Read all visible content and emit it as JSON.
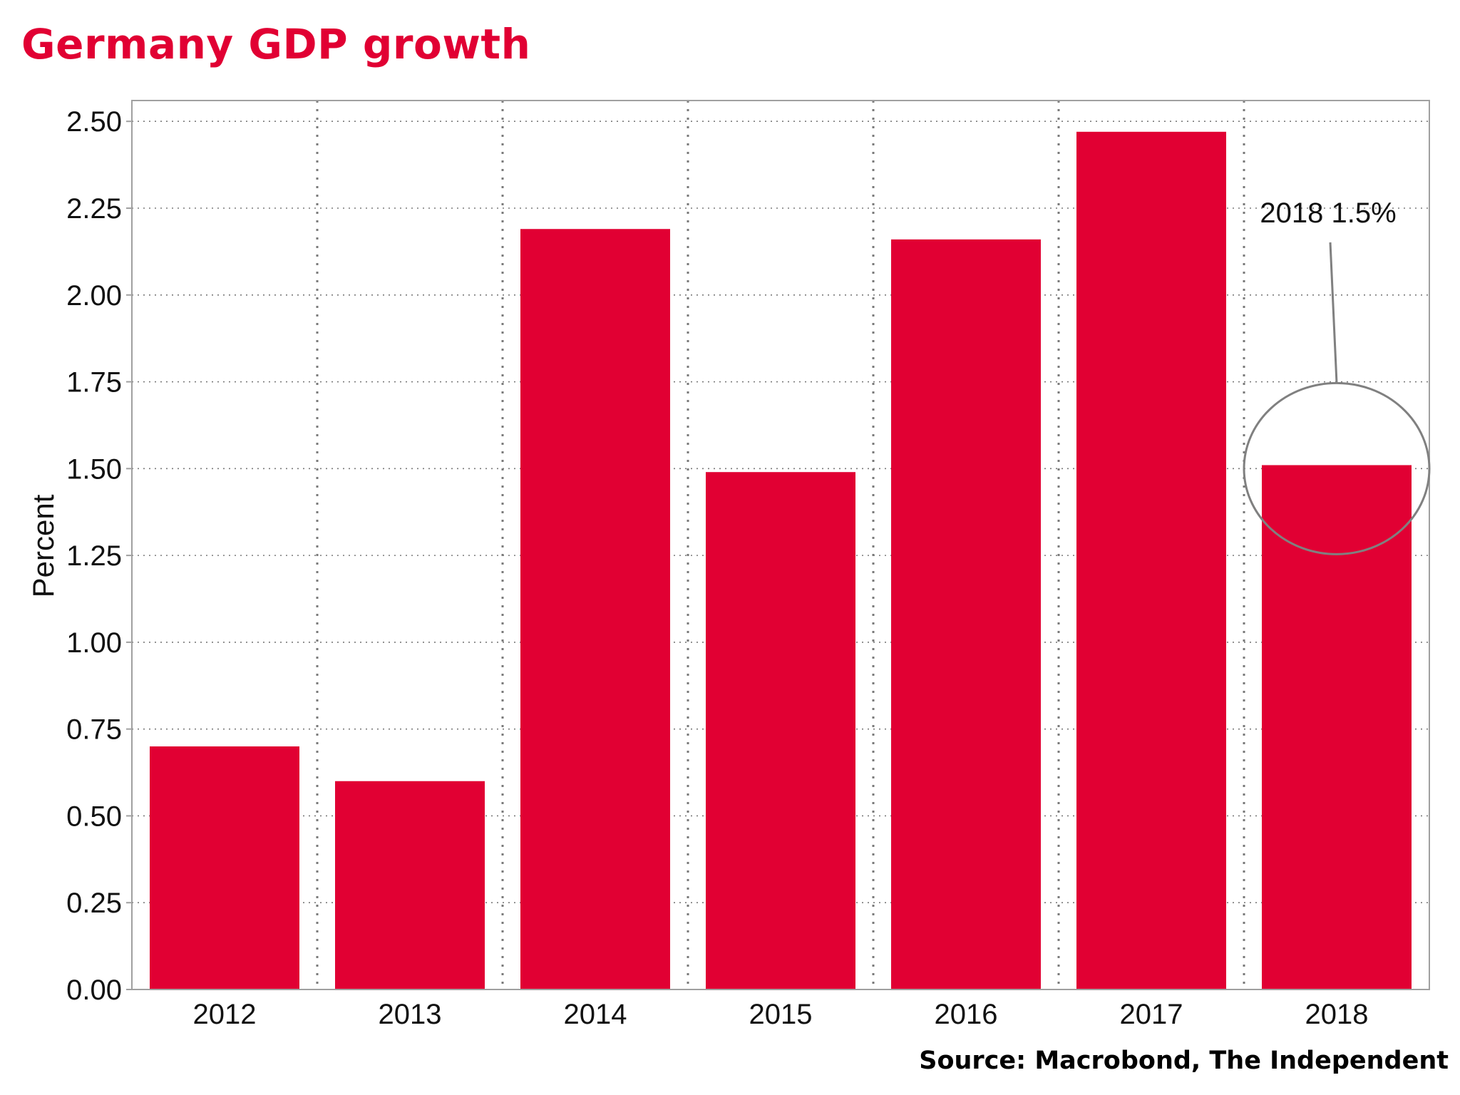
{
  "title": "Germany GDP growth",
  "source": "Source: Macrobond, The Independent",
  "colors": {
    "title": "#e10033",
    "bar": "#e10033",
    "frame": "#a0a0a0",
    "grid": "#7a7a7a",
    "callout": "#808080",
    "text": "#111111"
  },
  "chart_data": {
    "type": "bar",
    "categories": [
      "2012",
      "2013",
      "2014",
      "2015",
      "2016",
      "2017",
      "2018"
    ],
    "values": [
      0.7,
      0.6,
      2.19,
      1.49,
      2.16,
      2.47,
      1.51
    ],
    "title": "Germany GDP growth",
    "xlabel": "",
    "ylabel": "Percent",
    "ylim": [
      0,
      2.56
    ],
    "yticks": [
      "0.00",
      "0.25",
      "0.50",
      "0.75",
      "1.00",
      "1.25",
      "1.50",
      "1.75",
      "2.00",
      "2.25",
      "2.50"
    ],
    "grid": true,
    "grid_style": "dotted",
    "annotation": {
      "text": "2018 1.5%",
      "category": "2018",
      "value": 1.5
    }
  }
}
